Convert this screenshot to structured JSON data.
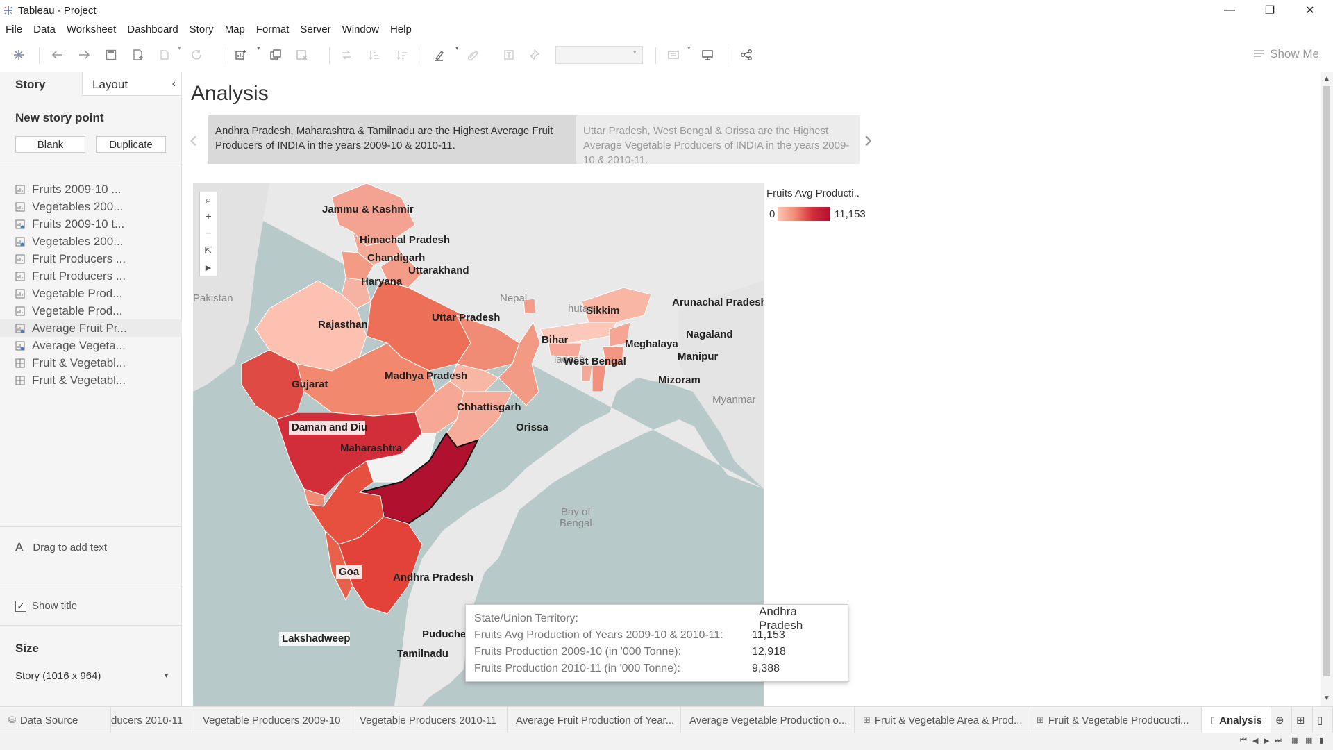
{
  "window": {
    "title": "Tableau - Project",
    "minimize": "—",
    "restore": "❐",
    "close": "✕"
  },
  "menu": [
    "File",
    "Data",
    "Worksheet",
    "Dashboard",
    "Story",
    "Map",
    "Format",
    "Server",
    "Window",
    "Help"
  ],
  "toolbar": {
    "show_me_label": "Show Me"
  },
  "left_pane": {
    "tabs": {
      "story": "Story",
      "layout": "Layout"
    },
    "new_story_point": "New story point",
    "blank_button": "Blank",
    "duplicate_button": "Duplicate",
    "sheets": [
      {
        "label": "Fruits 2009-10 ...",
        "icon": "worksheet-icon"
      },
      {
        "label": "Vegetables 200...",
        "icon": "worksheet-icon"
      },
      {
        "label": "Fruits 2009-10 t...",
        "icon": "map-worksheet-icon"
      },
      {
        "label": "Vegetables 200...",
        "icon": "map-worksheet-icon"
      },
      {
        "label": "Fruit Producers ...",
        "icon": "worksheet-icon"
      },
      {
        "label": "Fruit Producers ...",
        "icon": "worksheet-icon"
      },
      {
        "label": "Vegetable Prod...",
        "icon": "worksheet-icon"
      },
      {
        "label": "Vegetable Prod...",
        "icon": "worksheet-icon"
      },
      {
        "label": "Average Fruit Pr...",
        "icon": "map-worksheet-icon"
      },
      {
        "label": "Average Vegeta...",
        "icon": "map-worksheet-icon"
      },
      {
        "label": "Fruit & Vegetabl...",
        "icon": "dashboard-icon"
      },
      {
        "label": "Fruit & Vegetabl...",
        "icon": "dashboard-icon"
      }
    ],
    "drag_text": "Drag to add text",
    "show_title": "Show title",
    "size_label": "Size",
    "size_value": "Story (1016 x 964)"
  },
  "story": {
    "title": "Analysis",
    "points": [
      "Andhra Pradesh, Maharashtra & Tamilnadu are the Highest Average Fruit Producers of INDIA in the years 2009-10 & 2010-11.",
      "Uttar Pradesh, West Bengal & Orissa are the Highest Average Vegetable Producers of INDIA in the years 2009-10 & 2010-11."
    ]
  },
  "map": {
    "legend": {
      "title": "Fruits Avg Producti..",
      "min": "0",
      "max": "11,153"
    },
    "state_labels": {
      "jk": "Jammu & Kashmir",
      "hp": "Himachal Pradesh",
      "ch": "Chandigarh",
      "uk": "Uttarakhand",
      "hr": "Haryana",
      "rj": "Rajasthan",
      "up": "Uttar Pradesh",
      "sk": "Sikkim",
      "ar": "Arunachal Pradesh",
      "br": "Bihar",
      "ml": "Meghalaya",
      "nl": "Nagaland",
      "mn": "Manipur",
      "wb": "West Bengal",
      "mz": "Mizoram",
      "gj": "Gujarat",
      "mp": "Madhya Pradesh",
      "cg": "Chhattisgarh",
      "dd": "Daman and Diu",
      "or": "Orissa",
      "mh": "Maharashtra",
      "ga": "Goa",
      "ap": "Andhra Pradesh",
      "ld": "Lakshadweep",
      "py": "Puduche",
      "tn": "Tamilnadu"
    },
    "geo_labels": {
      "pakistan": "Pakistan",
      "nepal": "Nepal",
      "bhutan": "hutan",
      "bangladesh": "ladesh",
      "myanmar": "Myanmar",
      "bay": "Bay of",
      "bengal": "Bengal"
    },
    "colors": {
      "low": "#fbc6b6",
      "mid": "#f08a74",
      "high": "#d22e3a",
      "max": "#b0112f"
    }
  },
  "tooltip": {
    "rows": [
      {
        "key": "State/Union Territory:",
        "value": "Andhra Pradesh"
      },
      {
        "key": "Fruits Avg Production of Years 2009-10 & 2010-11:",
        "value": "11,153"
      },
      {
        "key": "Fruits Production 2009-10 (in '000 Tonne):",
        "value": "12,918"
      },
      {
        "key": "Fruits Production 2010-11 (in '000 Tonne):",
        "value": "9,388"
      }
    ]
  },
  "bottom_tabs": [
    {
      "label": "Data Source",
      "icon": "database-icon"
    },
    {
      "label": "ducers 2010-11",
      "icon": ""
    },
    {
      "label": "Vegetable Producers 2009-10",
      "icon": ""
    },
    {
      "label": "Vegetable Producers 2010-11",
      "icon": ""
    },
    {
      "label": "Average Fruit Production of Year...",
      "icon": ""
    },
    {
      "label": "Average Vegetable Production o...",
      "icon": ""
    },
    {
      "label": "Fruit & Vegetable Area & Prod...",
      "icon": "dashboard-icon"
    },
    {
      "label": "Fruit & Vegetable Producucti...",
      "icon": "dashboard-icon"
    },
    {
      "label": "Analysis",
      "icon": "story-icon"
    }
  ]
}
